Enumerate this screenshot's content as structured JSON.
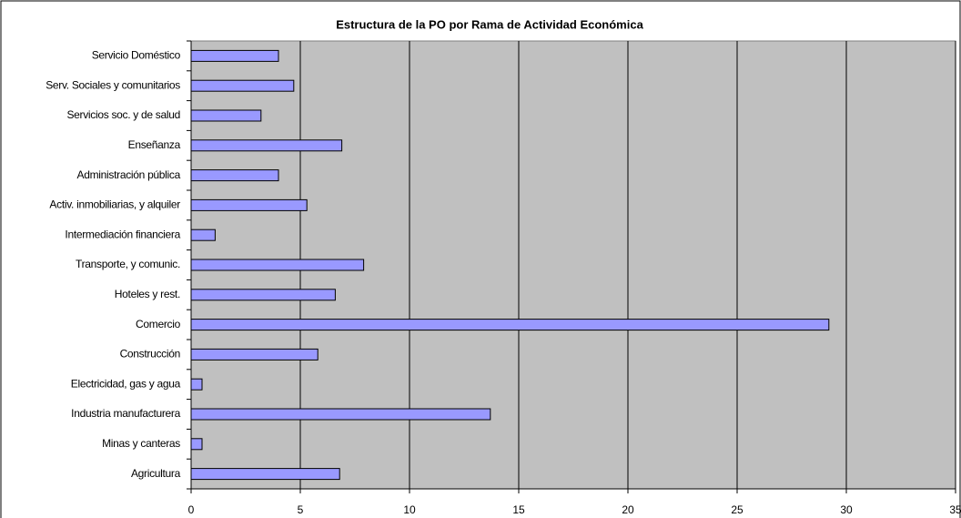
{
  "chart_data": {
    "type": "hbar",
    "title": "Estructura de la PO por Rama de Actividad Económica",
    "categories": [
      "Servicio Doméstico",
      "Serv. Sociales y comunitarios",
      "Servicios soc. y de salud",
      "Enseñanza",
      "Administración pública",
      "Activ. inmobiliarias, y alquiler",
      "Intermediación financiera",
      "Transporte, y comunic.",
      "Hoteles y rest.",
      "Comercio",
      "Construcción",
      "Electricidad, gas y agua",
      "Industria manufacturera",
      "Minas y canteras",
      "Agricultura"
    ],
    "values": [
      4.0,
      4.7,
      3.2,
      6.9,
      4.0,
      5.3,
      1.1,
      7.9,
      6.6,
      29.2,
      5.8,
      0.5,
      13.7,
      0.5,
      6.8
    ],
    "color": "#9999ff",
    "plot_background": "#c0c0c0",
    "xlim": [
      0,
      35
    ],
    "xticks": [
      0,
      5,
      10,
      15,
      20,
      25,
      30,
      35
    ],
    "grid": true
  }
}
